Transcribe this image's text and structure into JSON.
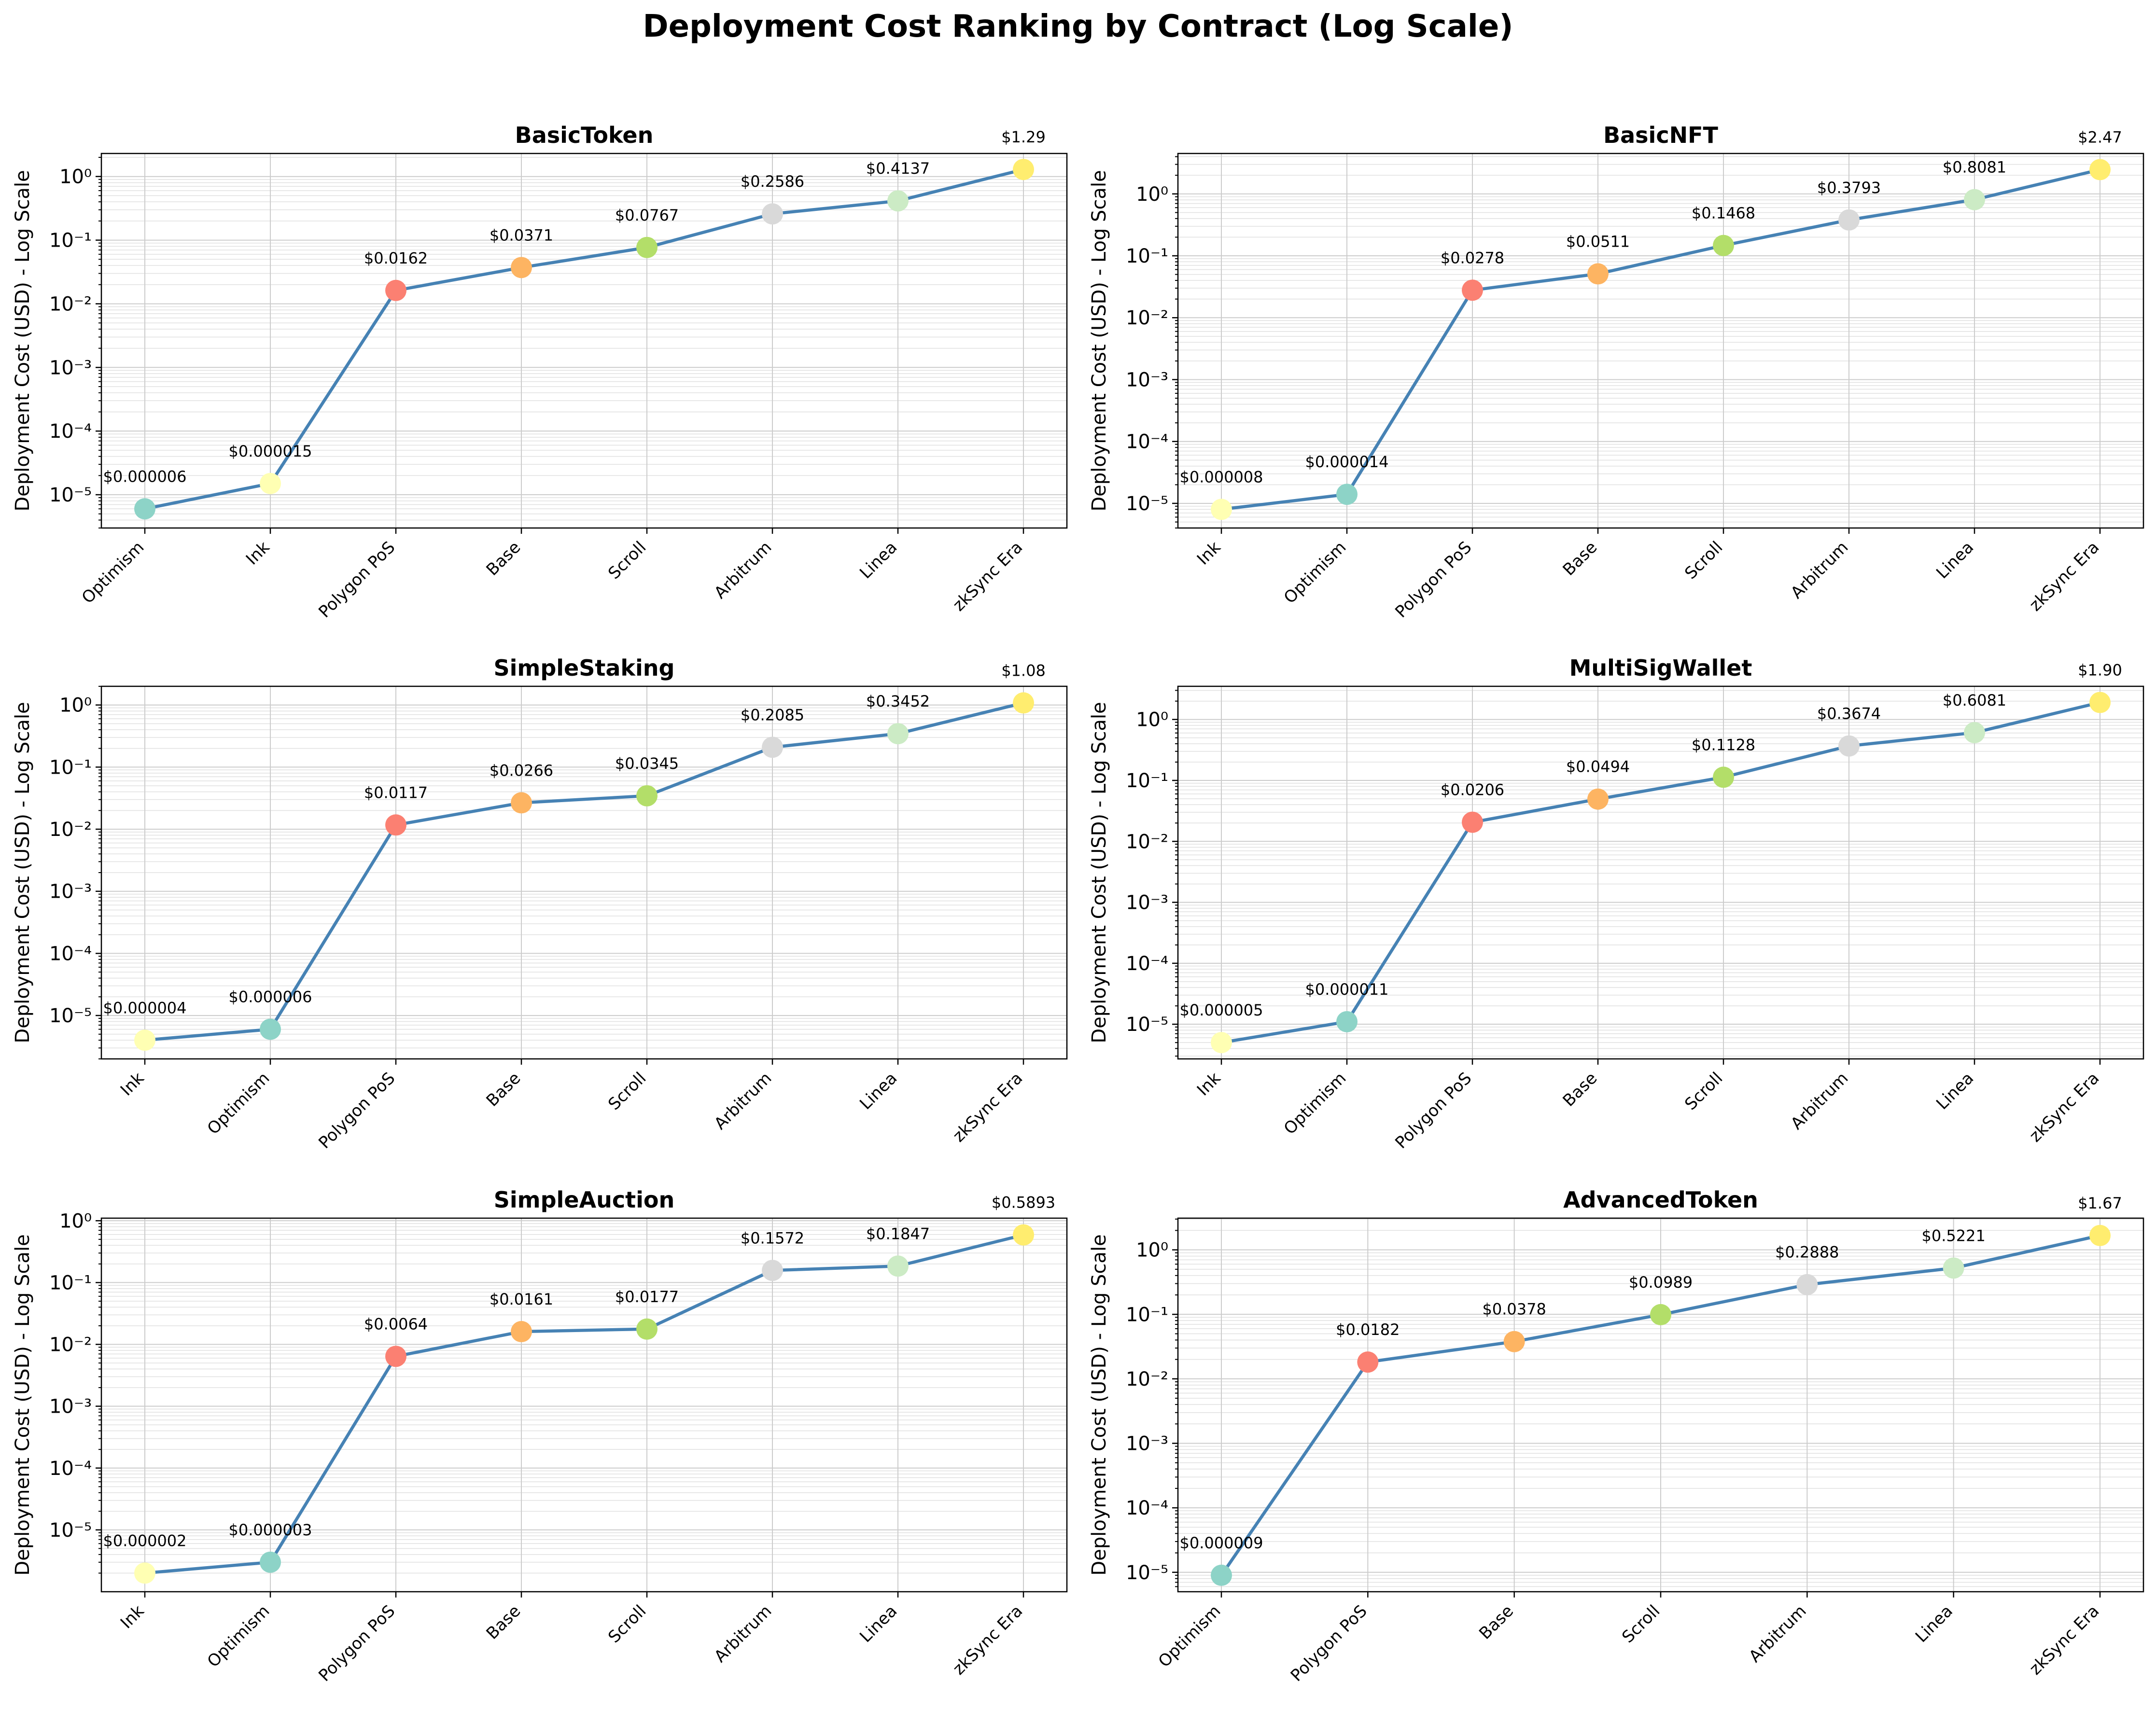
{
  "figure_title": "Deployment Cost Ranking by Contract (Log Scale)",
  "chart_data": [
    {
      "type": "line",
      "title": "BasicToken",
      "ylabel": "Deployment Cost (USD) - Log Scale",
      "xlabel": "",
      "yscale": "log",
      "categories": [
        "Optimism",
        "Ink",
        "Polygon PoS",
        "Base",
        "Scroll",
        "Arbitrum",
        "Linea",
        "zkSync Era"
      ],
      "values": [
        6e-06,
        1.5e-05,
        0.0162,
        0.0371,
        0.0767,
        0.2586,
        0.4137,
        1.29
      ],
      "labels": [
        "$0.000006",
        "$0.000015",
        "$0.0162",
        "$0.0371",
        "$0.0767",
        "$0.2586",
        "$0.4137",
        "$1.29"
      ],
      "marker_colors": [
        "#8dd3c7",
        "#ffffb3",
        "#fb8072",
        "#fdb462",
        "#b3de69",
        "#d9d9d9",
        "#ccebc5",
        "#ffed6f"
      ],
      "ylim": [
        3e-06,
        2.3
      ],
      "yticks": [
        "10⁻⁵",
        "10⁻⁴",
        "10⁻³",
        "10⁻²",
        "10⁻¹",
        "10⁰"
      ],
      "ytick_exps": [
        -5,
        -4,
        -3,
        -2,
        -1,
        0
      ],
      "grid": true
    },
    {
      "type": "line",
      "title": "BasicNFT",
      "ylabel": "Deployment Cost (USD) - Log Scale",
      "xlabel": "",
      "yscale": "log",
      "categories": [
        "Ink",
        "Optimism",
        "Polygon PoS",
        "Base",
        "Scroll",
        "Arbitrum",
        "Linea",
        "zkSync Era"
      ],
      "values": [
        8e-06,
        1.4e-05,
        0.0278,
        0.0511,
        0.1468,
        0.3793,
        0.8081,
        2.47
      ],
      "labels": [
        "$0.000008",
        "$0.000014",
        "$0.0278",
        "$0.0511",
        "$0.1468",
        "$0.3793",
        "$0.8081",
        "$2.47"
      ],
      "marker_colors": [
        "#ffffb3",
        "#8dd3c7",
        "#fb8072",
        "#fdb462",
        "#b3de69",
        "#d9d9d9",
        "#ccebc5",
        "#ffed6f"
      ],
      "ylim": [
        4e-06,
        4.5
      ],
      "yticks": [
        "10⁻⁵",
        "10⁻⁴",
        "10⁻³",
        "10⁻²",
        "10⁻¹",
        "10⁰"
      ],
      "ytick_exps": [
        -5,
        -4,
        -3,
        -2,
        -1,
        0
      ],
      "grid": true
    },
    {
      "type": "line",
      "title": "SimpleStaking",
      "ylabel": "Deployment Cost (USD) - Log Scale",
      "xlabel": "",
      "yscale": "log",
      "categories": [
        "Ink",
        "Optimism",
        "Polygon PoS",
        "Base",
        "Scroll",
        "Arbitrum",
        "Linea",
        "zkSync Era"
      ],
      "values": [
        4e-06,
        6e-06,
        0.0117,
        0.0266,
        0.0345,
        0.2085,
        0.3452,
        1.08
      ],
      "labels": [
        "$0.000004",
        "$0.000006",
        "$0.0117",
        "$0.0266",
        "$0.0345",
        "$0.2085",
        "$0.3452",
        "$1.08"
      ],
      "marker_colors": [
        "#ffffb3",
        "#8dd3c7",
        "#fb8072",
        "#fdb462",
        "#b3de69",
        "#d9d9d9",
        "#ccebc5",
        "#ffed6f"
      ],
      "ylim": [
        2e-06,
        2.0
      ],
      "yticks": [
        "10⁻⁵",
        "10⁻⁴",
        "10⁻³",
        "10⁻²",
        "10⁻¹",
        "10⁰"
      ],
      "ytick_exps": [
        -5,
        -4,
        -3,
        -2,
        -1,
        0
      ],
      "grid": true
    },
    {
      "type": "line",
      "title": "MultiSigWallet",
      "ylabel": "Deployment Cost (USD) - Log Scale",
      "xlabel": "",
      "yscale": "log",
      "categories": [
        "Ink",
        "Optimism",
        "Polygon PoS",
        "Base",
        "Scroll",
        "Arbitrum",
        "Linea",
        "zkSync Era"
      ],
      "values": [
        5e-06,
        1.1e-05,
        0.0206,
        0.0494,
        0.1128,
        0.3674,
        0.6081,
        1.9
      ],
      "labels": [
        "$0.000005",
        "$0.000011",
        "$0.0206",
        "$0.0494",
        "$0.1128",
        "$0.3674",
        "$0.6081",
        "$1.90"
      ],
      "marker_colors": [
        "#ffffb3",
        "#8dd3c7",
        "#fb8072",
        "#fdb462",
        "#b3de69",
        "#d9d9d9",
        "#ccebc5",
        "#ffed6f"
      ],
      "ylim": [
        2.7e-06,
        3.5
      ],
      "yticks": [
        "10⁻⁵",
        "10⁻⁴",
        "10⁻³",
        "10⁻²",
        "10⁻¹",
        "10⁰"
      ],
      "ytick_exps": [
        -5,
        -4,
        -3,
        -2,
        -1,
        0
      ],
      "grid": true
    },
    {
      "type": "line",
      "title": "SimpleAuction",
      "ylabel": "Deployment Cost (USD) - Log Scale",
      "xlabel": "",
      "yscale": "log",
      "categories": [
        "Ink",
        "Optimism",
        "Polygon PoS",
        "Base",
        "Scroll",
        "Arbitrum",
        "Linea",
        "zkSync Era"
      ],
      "values": [
        2e-06,
        3e-06,
        0.0064,
        0.0161,
        0.0177,
        0.1572,
        0.1847,
        0.5893
      ],
      "labels": [
        "$0.000002",
        "$0.000003",
        "$0.0064",
        "$0.0161",
        "$0.0177",
        "$0.1572",
        "$0.1847",
        "$0.5893"
      ],
      "marker_colors": [
        "#ffffb3",
        "#8dd3c7",
        "#fb8072",
        "#fdb462",
        "#b3de69",
        "#d9d9d9",
        "#ccebc5",
        "#ffed6f"
      ],
      "ylim": [
        1e-06,
        1.1
      ],
      "yticks": [
        "10⁻⁵",
        "10⁻⁴",
        "10⁻³",
        "10⁻²",
        "10⁻¹",
        "10⁰"
      ],
      "ytick_exps": [
        -5,
        -4,
        -3,
        -2,
        -1,
        0
      ],
      "grid": true
    },
    {
      "type": "line",
      "title": "AdvancedToken",
      "ylabel": "Deployment Cost (USD) - Log Scale",
      "xlabel": "",
      "yscale": "log",
      "categories": [
        "Optimism",
        "Polygon PoS",
        "Base",
        "Scroll",
        "Arbitrum",
        "Linea",
        "zkSync Era"
      ],
      "values": [
        9e-06,
        0.0182,
        0.0378,
        0.0989,
        0.2888,
        0.5221,
        1.67
      ],
      "labels": [
        "$0.000009",
        "$0.0182",
        "$0.0378",
        "$0.0989",
        "$0.2888",
        "$0.5221",
        "$1.67"
      ],
      "marker_colors": [
        "#8dd3c7",
        "#fb8072",
        "#fdb462",
        "#b3de69",
        "#d9d9d9",
        "#ccebc5",
        "#ffed6f"
      ],
      "ylim": [
        5e-06,
        3.1
      ],
      "yticks": [
        "10⁻⁵",
        "10⁻⁴",
        "10⁻³",
        "10⁻²",
        "10⁻¹",
        "10⁰"
      ],
      "ytick_exps": [
        -5,
        -4,
        -3,
        -2,
        -1,
        0
      ],
      "grid": true
    }
  ],
  "colors": {
    "line": "#4682b4",
    "grid": "#cccccc"
  }
}
